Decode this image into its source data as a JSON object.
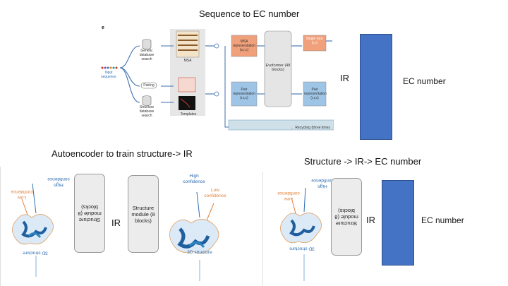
{
  "slide": {
    "title_top": "Sequence to EC number",
    "title_left": "Autoencoder to train structure-> IR",
    "title_right": "Structure -> IR-> EC number",
    "ir_top": "IR",
    "ir_left": "IR",
    "ir_right": "IR",
    "ec_top": "EC number",
    "ec_right": "EC number"
  },
  "pipeline": {
    "panel_letter": "e",
    "input_label": "Input sequence",
    "genetic_db": "Genetic database search",
    "pairing": "Pairing",
    "structure_db": "Structure database search",
    "msa": "MSA",
    "templates": "Templates",
    "msa_rep": "MSA representation (s,r,c)",
    "pair_rep": "Pair representation (r,r,c)",
    "evoformer": "Evoformer (48 blocks)",
    "single_rep": "Single repr. (r,c)",
    "pair_rep_out": "Pair representation (r,r,c)",
    "recycling": "← Recycling (three times"
  },
  "left_panel": {
    "high_conf": "High confidence",
    "low_conf": "Low confidence",
    "struct_module_flipped": "Structure module (8 blocks)",
    "structure_3d_flipped": "3D structure",
    "struct_module": "Structure module (8 blocks)",
    "high_conf_2": "High confidence",
    "low_conf_2": "Low confidence",
    "structure_3d": "3D structure"
  },
  "right_panel": {
    "high_conf": "High confidence",
    "low_conf": "Low confidence",
    "struct_module": "Structure module (8 blocks)",
    "structure_3d": "3D structure"
  },
  "colors": {
    "ec_box": "#4472c4",
    "high": "#2b6cb0",
    "low": "#e0803a"
  }
}
